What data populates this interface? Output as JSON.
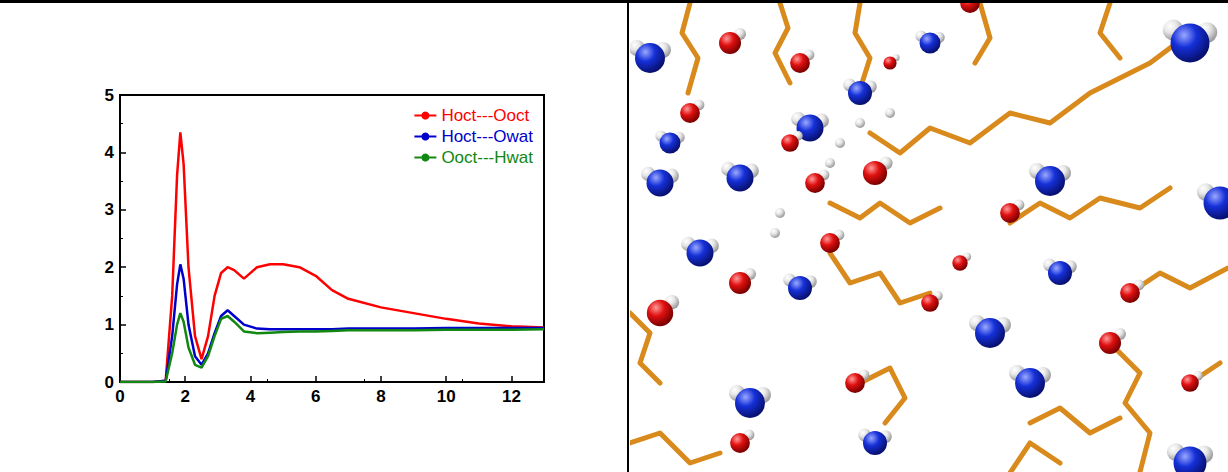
{
  "chart_data": {
    "type": "line",
    "x": [
      0,
      1,
      1.4,
      1.6,
      1.75,
      1.85,
      1.95,
      2.1,
      2.3,
      2.5,
      2.7,
      2.9,
      3.1,
      3.3,
      3.5,
      3.8,
      4.2,
      4.6,
      5,
      5.5,
      6,
      6.5,
      7,
      8,
      9,
      10,
      11,
      12,
      13
    ],
    "series": [
      {
        "name": "Hoct---Ooct",
        "color": "#ff0000",
        "values": [
          0,
          0,
          0.02,
          1.5,
          3.6,
          4.35,
          3.8,
          2.0,
          0.8,
          0.4,
          0.8,
          1.5,
          1.9,
          2.0,
          1.95,
          1.8,
          2.0,
          2.05,
          2.05,
          2.0,
          1.85,
          1.6,
          1.45,
          1.3,
          1.2,
          1.1,
          1.02,
          0.97,
          0.95
        ]
      },
      {
        "name": "Hoct---Owat",
        "color": "#0000cc",
        "values": [
          0,
          0,
          0.02,
          0.8,
          1.7,
          2.05,
          1.8,
          1.0,
          0.45,
          0.3,
          0.5,
          0.85,
          1.15,
          1.25,
          1.15,
          1.0,
          0.93,
          0.92,
          0.92,
          0.92,
          0.92,
          0.92,
          0.93,
          0.93,
          0.93,
          0.94,
          0.94,
          0.94,
          0.94
        ]
      },
      {
        "name": "Ooct---Hwat",
        "color": "#118811",
        "values": [
          0,
          0,
          0.01,
          0.5,
          1.0,
          1.2,
          1.05,
          0.6,
          0.3,
          0.25,
          0.45,
          0.8,
          1.1,
          1.15,
          1.05,
          0.88,
          0.85,
          0.86,
          0.87,
          0.88,
          0.88,
          0.89,
          0.9,
          0.9,
          0.9,
          0.91,
          0.91,
          0.91,
          0.92
        ]
      }
    ],
    "xlim": [
      0,
      13
    ],
    "xticks": [
      0,
      2,
      4,
      6,
      8,
      10,
      12
    ],
    "ylim": [
      0,
      5
    ],
    "yticks": [
      0,
      1,
      2,
      3,
      4,
      5
    ],
    "legend": "upper right",
    "grid": false
  }
}
